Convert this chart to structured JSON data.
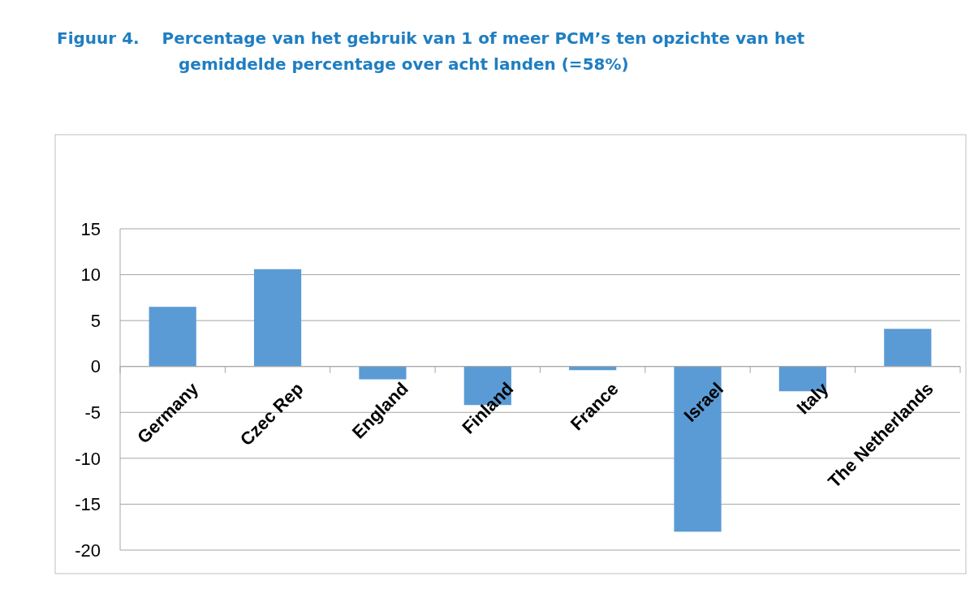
{
  "chart_data": {
    "type": "bar",
    "title": "Figuur 4.    Percentage van het gebruik van 1 of meer PCM’s ten opzichte van het",
    "subtitle": "gemiddelde percentage over acht landen (=58%)",
    "categories": [
      "Germany",
      "Czec Rep",
      "England",
      "Finland",
      "France",
      "Israel",
      "Italy",
      "The Netherlands"
    ],
    "values": [
      6.5,
      10.6,
      -1.4,
      -4.2,
      -0.4,
      -18.0,
      -2.7,
      4.1
    ],
    "color": "#5b9bd5",
    "ylim": [
      -20,
      15
    ],
    "yticks": [
      -20,
      -15,
      -10,
      -5,
      0,
      5,
      10,
      15
    ],
    "grid": "y"
  }
}
